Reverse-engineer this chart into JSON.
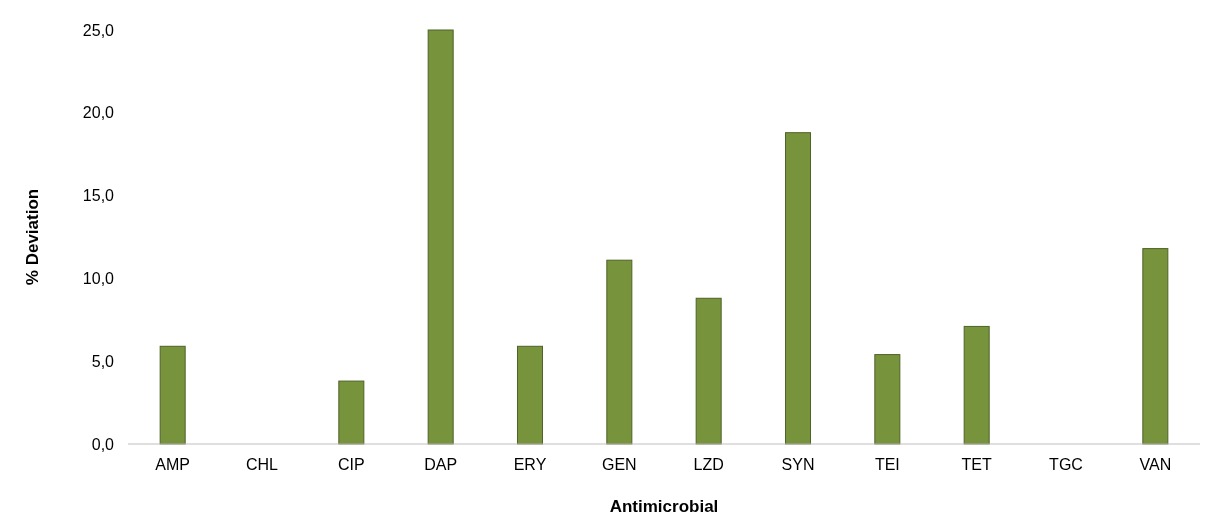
{
  "chart_data": {
    "type": "bar",
    "xlabel": "Antimicrobial",
    "ylabel": "% Deviation",
    "categories": [
      "AMP",
      "CHL",
      "CIP",
      "DAP",
      "ERY",
      "GEN",
      "LZD",
      "SYN",
      "TEI",
      "TET",
      "TGC",
      "VAN"
    ],
    "values": [
      5.9,
      0,
      3.8,
      25.0,
      5.9,
      11.1,
      8.8,
      18.8,
      5.4,
      7.1,
      0,
      11.8
    ],
    "color": "#77933c",
    "ylim": [
      0,
      25
    ],
    "yticks": [
      {
        "value": 0,
        "label": "0,0"
      },
      {
        "value": 5,
        "label": "5,0"
      },
      {
        "value": 10,
        "label": "10,0"
      },
      {
        "value": 15,
        "label": "15,0"
      },
      {
        "value": 20,
        "label": "20,0"
      },
      {
        "value": 25,
        "label": "25,0"
      }
    ],
    "grid": false
  }
}
